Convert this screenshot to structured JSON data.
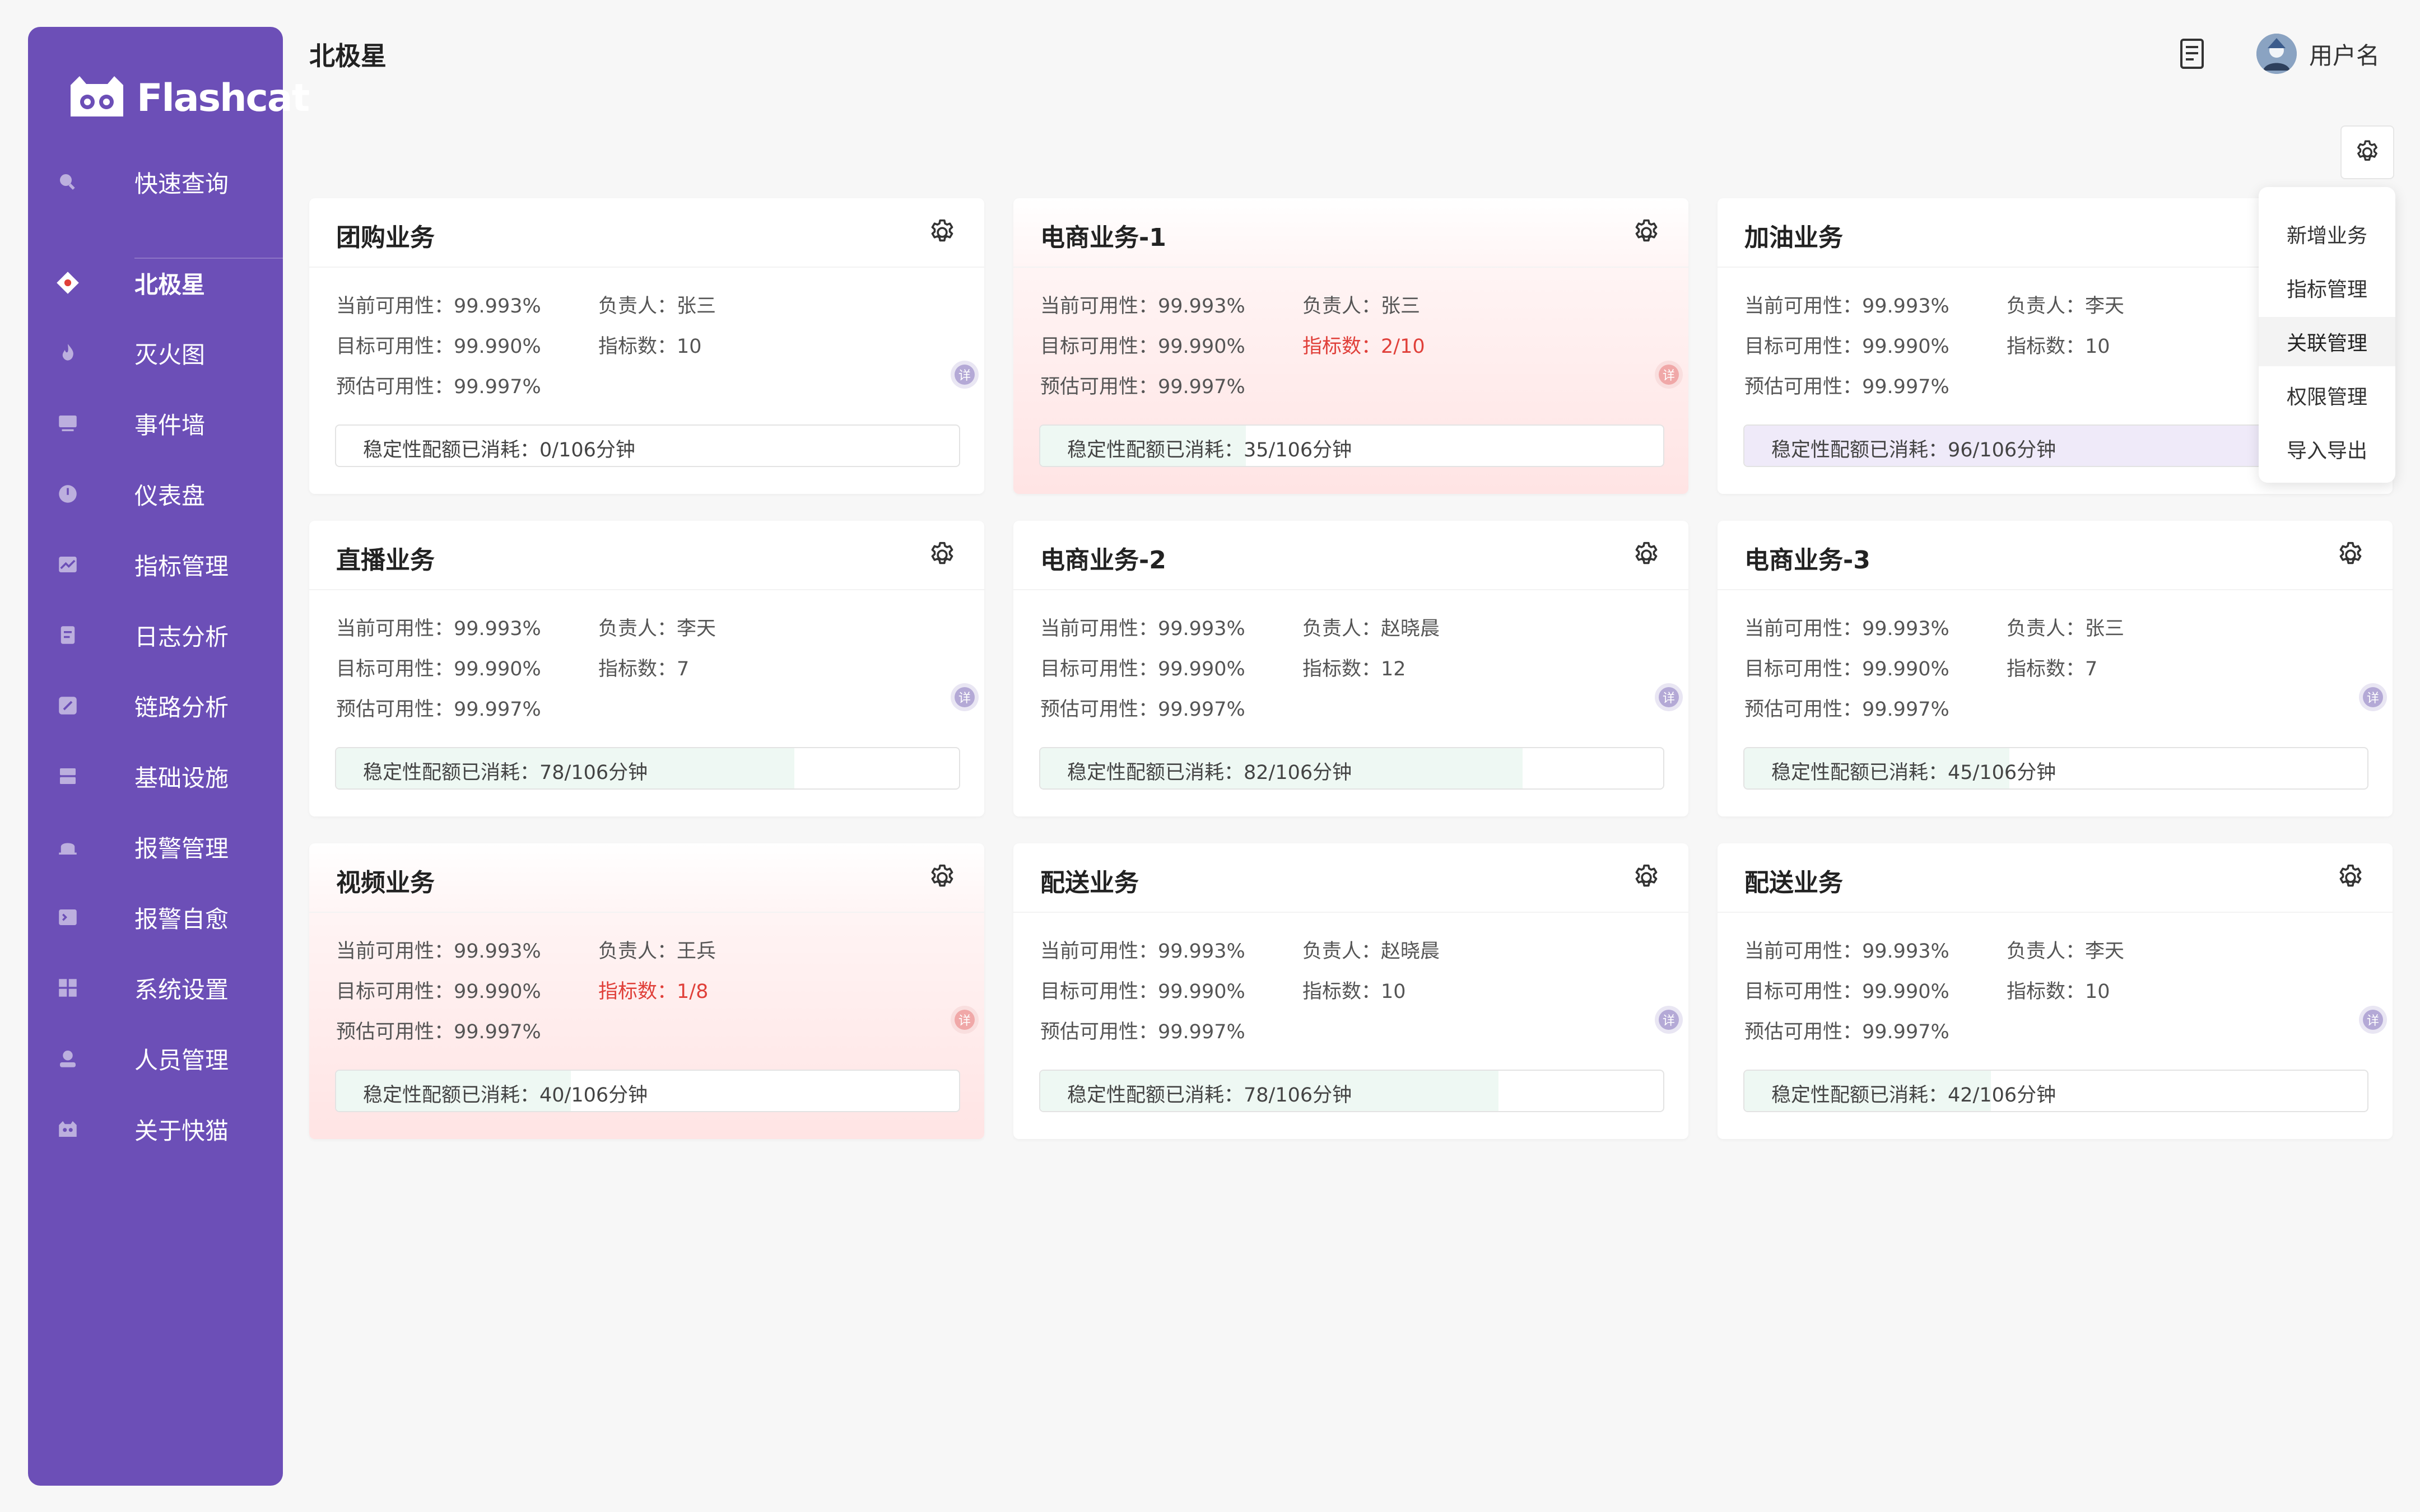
{
  "app": {
    "logo_text": "Flashcat"
  },
  "sidebar": {
    "items": [
      {
        "label": "快速查询",
        "icon": "search-icon",
        "active": false
      },
      {
        "label": "北极星",
        "icon": "compass-icon",
        "active": true
      },
      {
        "label": "灭火图",
        "icon": "flame-icon",
        "active": false
      },
      {
        "label": "事件墙",
        "icon": "event-wall-icon",
        "active": false
      },
      {
        "label": "仪表盘",
        "icon": "dashboard-icon",
        "active": false
      },
      {
        "label": "指标管理",
        "icon": "chart-line-icon",
        "active": false
      },
      {
        "label": "日志分析",
        "icon": "log-icon",
        "active": false
      },
      {
        "label": "链路分析",
        "icon": "link-icon",
        "active": false
      },
      {
        "label": "基础设施",
        "icon": "server-icon",
        "active": false
      },
      {
        "label": "报警管理",
        "icon": "alarm-icon",
        "active": false
      },
      {
        "label": "报警自愈",
        "icon": "terminal-icon",
        "active": false
      },
      {
        "label": "系统设置",
        "icon": "grid-settings-icon",
        "active": false
      },
      {
        "label": "人员管理",
        "icon": "user-icon",
        "active": false
      },
      {
        "label": "关于快猫",
        "icon": "cat-icon",
        "active": false
      }
    ]
  },
  "header": {
    "title": "北极星",
    "username": "用户名"
  },
  "labels": {
    "current": "当前可用性：",
    "target": "目标可用性：",
    "estimated": "预估可用性：",
    "owner": "负责人：",
    "metrics": "指标数：",
    "quota": "稳定性配额已消耗：",
    "tag": "详"
  },
  "cards": [
    {
      "title": "团购业务",
      "current": "99.993%",
      "target": "99.990%",
      "estimated": "99.997%",
      "owner": "张三",
      "metrics": "10",
      "metrics_alert": false,
      "quota": "0/106分钟",
      "quota_used": 0,
      "alert": false
    },
    {
      "title": "电商业务-1",
      "current": "99.993%",
      "target": "99.990%",
      "estimated": "99.997%",
      "owner": "张三",
      "metrics": "2/10",
      "metrics_alert": true,
      "quota": "35/106分钟",
      "quota_used": 35,
      "alert": true
    },
    {
      "title": "加油业务",
      "current": "99.993%",
      "target": "99.990%",
      "estimated": "99.997%",
      "owner": "李天",
      "metrics": "10",
      "metrics_alert": false,
      "quota": "96/106分钟",
      "quota_used": 96,
      "alert": false
    },
    {
      "title": "直播业务",
      "current": "99.993%",
      "target": "99.990%",
      "estimated": "99.997%",
      "owner": "李天",
      "metrics": "7",
      "metrics_alert": false,
      "quota": "78/106分钟",
      "quota_used": 78,
      "alert": false
    },
    {
      "title": "电商业务-2",
      "current": "99.993%",
      "target": "99.990%",
      "estimated": "99.997%",
      "owner": "赵晓晨",
      "metrics": "12",
      "metrics_alert": false,
      "quota": "82/106分钟",
      "quota_used": 82,
      "alert": false
    },
    {
      "title": "电商业务-3",
      "current": "99.993%",
      "target": "99.990%",
      "estimated": "99.997%",
      "owner": "张三",
      "metrics": "7",
      "metrics_alert": false,
      "quota": "45/106分钟",
      "quota_used": 45,
      "alert": false
    },
    {
      "title": "视频业务",
      "current": "99.993%",
      "target": "99.990%",
      "estimated": "99.997%",
      "owner": "王兵",
      "metrics": "1/8",
      "metrics_alert": true,
      "quota": "40/106分钟",
      "quota_used": 40,
      "alert": true
    },
    {
      "title": "配送业务",
      "current": "99.993%",
      "target": "99.990%",
      "estimated": "99.997%",
      "owner": "赵晓晨",
      "metrics": "10",
      "metrics_alert": false,
      "quota": "78/106分钟",
      "quota_used": 78,
      "alert": false
    },
    {
      "title": "配送业务",
      "current": "99.993%",
      "target": "99.990%",
      "estimated": "99.997%",
      "owner": "李天",
      "metrics": "10",
      "metrics_alert": false,
      "quota": "42/106分钟",
      "quota_used": 42,
      "alert": false
    }
  ],
  "dropdown": {
    "items": [
      {
        "label": "新增业务",
        "highlighted": false
      },
      {
        "label": "指标管理",
        "highlighted": false
      },
      {
        "label": "关联管理",
        "highlighted": true
      },
      {
        "label": "权限管理",
        "highlighted": false
      },
      {
        "label": "导入导出",
        "highlighted": false
      }
    ]
  },
  "colors": {
    "sidebar": "#6c4fb7",
    "alert_text": "#e0403a",
    "quota_fill_green": "#eef8f3",
    "quota_fill_purple": "#efeaf9"
  }
}
